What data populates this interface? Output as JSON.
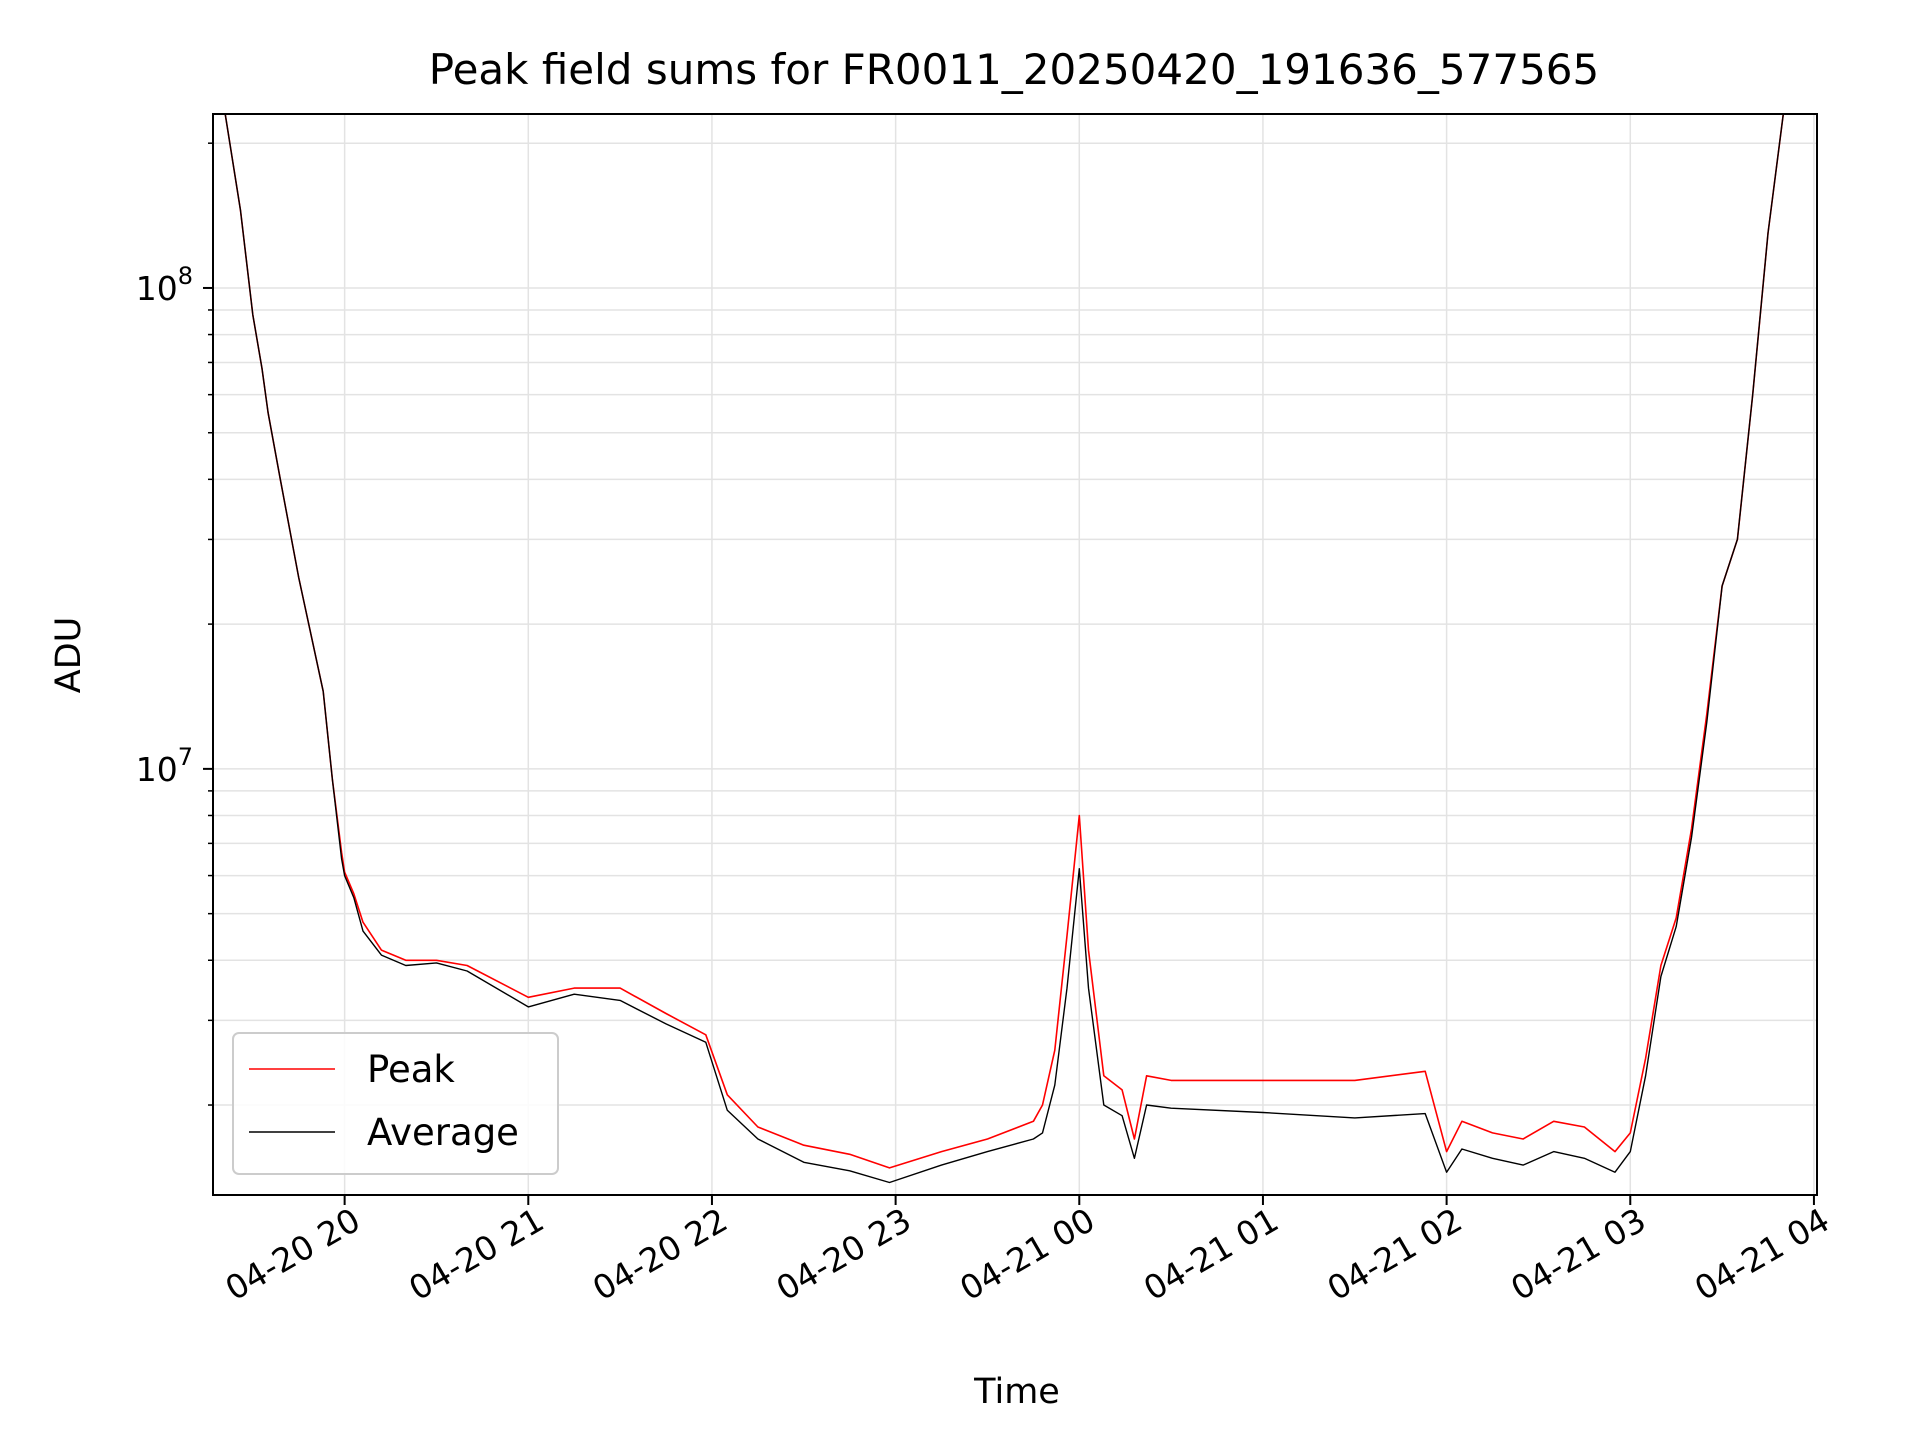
{
  "chart_data": {
    "type": "line",
    "title": "Peak field sums for FR0011_20250420_191636_577565",
    "xlabel": "Time",
    "ylabel": "ADU",
    "yscale": "log",
    "ylim": [
      1300000,
      230000000
    ],
    "xlim": [
      "2025-04-20 19:17",
      "2025-04-21 04:01"
    ],
    "grid": true,
    "legend_loc": "lower left",
    "x_tick_labels": [
      "04-20 20",
      "04-20 21",
      "04-20 22",
      "04-20 23",
      "04-21 00",
      "04-21 01",
      "04-21 02",
      "04-21 03",
      "04-21 04"
    ],
    "y_tick_labels": [
      {
        "base": "10",
        "exp": "7",
        "value": 10000000
      },
      {
        "base": "10",
        "exp": "8",
        "value": 100000000
      }
    ],
    "x": [
      "2025-04-20 19:21",
      "2025-04-20 19:26",
      "2025-04-20 19:30",
      "2025-04-20 19:33",
      "2025-04-20 19:35",
      "2025-04-20 19:39",
      "2025-04-20 19:45",
      "2025-04-20 19:53",
      "2025-04-20 19:56",
      "2025-04-20 19:59",
      "2025-04-20 20:00",
      "2025-04-20 20:03",
      "2025-04-20 20:06",
      "2025-04-20 20:12",
      "2025-04-20 20:20",
      "2025-04-20 20:30",
      "2025-04-20 20:40",
      "2025-04-20 21:00",
      "2025-04-20 21:15",
      "2025-04-20 21:30",
      "2025-04-20 21:45",
      "2025-04-20 21:58",
      "2025-04-20 22:05",
      "2025-04-20 22:15",
      "2025-04-20 22:30",
      "2025-04-20 22:45",
      "2025-04-20 22:58",
      "2025-04-20 23:15",
      "2025-04-20 23:30",
      "2025-04-20 23:45",
      "2025-04-20 23:48",
      "2025-04-20 23:52",
      "2025-04-20 23:56",
      "2025-04-21 00:00",
      "2025-04-21 00:03",
      "2025-04-21 00:08",
      "2025-04-21 00:14",
      "2025-04-21 00:18",
      "2025-04-21 00:22",
      "2025-04-21 00:30",
      "2025-04-21 01:00",
      "2025-04-21 01:30",
      "2025-04-21 01:53",
      "2025-04-21 02:00",
      "2025-04-21 02:05",
      "2025-04-21 02:15",
      "2025-04-21 02:25",
      "2025-04-21 02:35",
      "2025-04-21 02:45",
      "2025-04-21 02:55",
      "2025-04-21 03:00",
      "2025-04-21 03:05",
      "2025-04-21 03:10",
      "2025-04-21 03:15",
      "2025-04-21 03:20",
      "2025-04-21 03:25",
      "2025-04-21 03:30",
      "2025-04-21 03:35",
      "2025-04-21 03:40",
      "2025-04-21 03:45",
      "2025-04-21 03:50"
    ],
    "series": [
      {
        "name": "Peak",
        "color": "#ff0000",
        "values": [
          230000000,
          145000000,
          88000000,
          68000000,
          55000000,
          40000000,
          25000000,
          14500000,
          9500000,
          6700000,
          6100000,
          5500000,
          4800000,
          4200000,
          4000000,
          4000000,
          3900000,
          3350000,
          3500000,
          3500000,
          3100000,
          2800000,
          2100000,
          1800000,
          1650000,
          1580000,
          1480000,
          1600000,
          1700000,
          1850000,
          2000000,
          2600000,
          4500000,
          8000000,
          4200000,
          2300000,
          2150000,
          1700000,
          2300000,
          2250000,
          2250000,
          2250000,
          2350000,
          1600000,
          1850000,
          1750000,
          1700000,
          1850000,
          1800000,
          1600000,
          1750000,
          2500000,
          3900000,
          4900000,
          7500000,
          13000000,
          24000000,
          30000000,
          60000000,
          130000000,
          230000000
        ]
      },
      {
        "name": "Average",
        "color": "#000000",
        "values": [
          230000000,
          145000000,
          88000000,
          68000000,
          55000000,
          40000000,
          25000000,
          14500000,
          9500000,
          6500000,
          6000000,
          5400000,
          4600000,
          4100000,
          3900000,
          3950000,
          3800000,
          3200000,
          3400000,
          3300000,
          2950000,
          2700000,
          1950000,
          1700000,
          1520000,
          1460000,
          1380000,
          1500000,
          1600000,
          1700000,
          1750000,
          2200000,
          3500000,
          6200000,
          3500000,
          2000000,
          1900000,
          1550000,
          2000000,
          1970000,
          1930000,
          1880000,
          1920000,
          1450000,
          1620000,
          1550000,
          1500000,
          1600000,
          1550000,
          1450000,
          1600000,
          2300000,
          3700000,
          4700000,
          7200000,
          12500000,
          24000000,
          30000000,
          60000000,
          130000000,
          230000000
        ]
      }
    ]
  }
}
